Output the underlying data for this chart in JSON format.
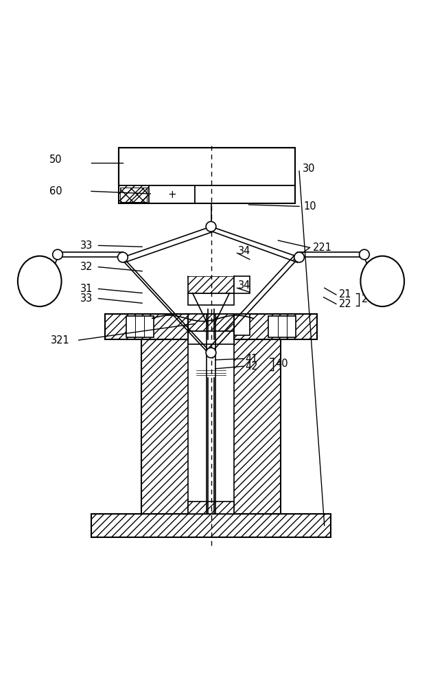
{
  "bg_color": "#ffffff",
  "line_color": "#000000",
  "fig_width": 6.15,
  "fig_height": 10.0
}
